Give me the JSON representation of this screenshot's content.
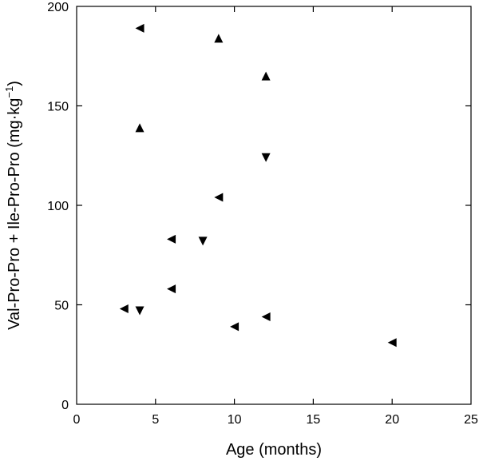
{
  "chart_data": {
    "type": "scatter",
    "xlabel": "Age (months)",
    "ylabel": "Val-Pro-Pro + Ile-Pro-Pro (mg·kg",
    "ylabel_sup": "−1",
    "ylabel_close": ")",
    "xlim": [
      0,
      25
    ],
    "ylim": [
      0,
      200
    ],
    "x_ticks": [
      0,
      5,
      10,
      15,
      20,
      25
    ],
    "y_ticks": [
      0,
      50,
      100,
      150,
      200
    ],
    "x_tick_labels": [
      "0",
      "5",
      "10",
      "15",
      "20",
      "25"
    ],
    "y_tick_labels": [
      "0",
      "50",
      "100",
      "150",
      "200"
    ],
    "grid": false,
    "marker_color": "#000000",
    "series": [
      {
        "marker": "triangle-left",
        "points": [
          {
            "x": 4,
            "y": 189
          },
          {
            "x": 9,
            "y": 104
          },
          {
            "x": 6,
            "y": 83
          },
          {
            "x": 6,
            "y": 58
          },
          {
            "x": 3,
            "y": 48
          },
          {
            "x": 10,
            "y": 39
          },
          {
            "x": 12,
            "y": 44
          },
          {
            "x": 20,
            "y": 31
          }
        ]
      },
      {
        "marker": "triangle-up",
        "points": [
          {
            "x": 9,
            "y": 184
          },
          {
            "x": 12,
            "y": 165
          },
          {
            "x": 4,
            "y": 139
          }
        ]
      },
      {
        "marker": "triangle-down",
        "points": [
          {
            "x": 12,
            "y": 124
          },
          {
            "x": 8,
            "y": 82
          },
          {
            "x": 4,
            "y": 47
          }
        ]
      }
    ]
  }
}
